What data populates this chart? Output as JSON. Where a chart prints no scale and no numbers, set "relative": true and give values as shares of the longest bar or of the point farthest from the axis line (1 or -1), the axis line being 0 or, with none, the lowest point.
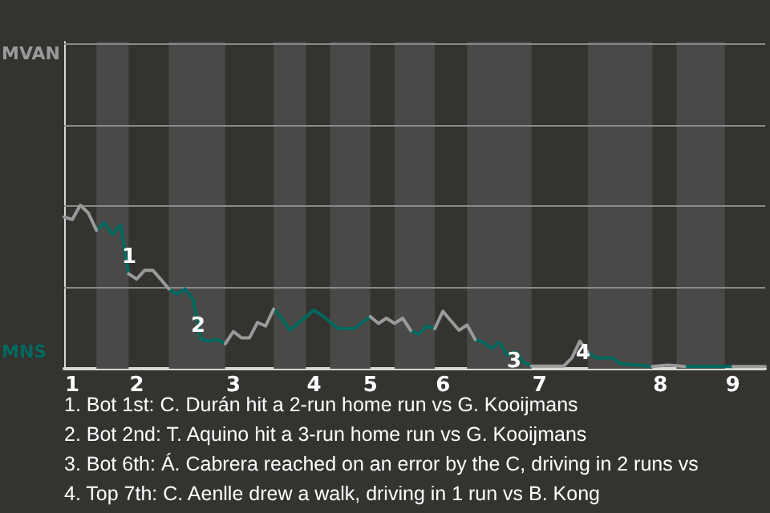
{
  "chart_data": {
    "type": "line",
    "relative": true,
    "categories": [
      null,
      "1",
      null,
      null,
      null,
      null,
      null,
      null,
      null,
      "2",
      null,
      null,
      null,
      null,
      null,
      null,
      null,
      null,
      null,
      null,
      null,
      "3",
      null,
      null,
      null,
      null,
      null,
      null,
      null,
      null,
      null,
      "4",
      null,
      null,
      null,
      null,
      null,
      null,
      "5",
      null,
      null,
      null,
      null,
      null,
      null,
      null,
      null,
      "6",
      null,
      null,
      null,
      null,
      null,
      null,
      null,
      null,
      null,
      null,
      null,
      "7",
      null,
      null,
      null,
      null,
      null,
      null,
      null,
      null,
      null,
      null,
      null,
      null,
      null,
      null,
      "8",
      null,
      null,
      null,
      null,
      null,
      null,
      null,
      null,
      "9",
      null,
      null,
      null,
      null
    ],
    "series": [
      {
        "color": "#9a9a9a",
        "values": [
          0.928,
          0.912,
          1,
          0.952,
          0.847,
          null,
          null,
          null,
          0.58,
          0.548,
          0.602,
          0.602,
          0.546,
          0.488,
          null,
          null,
          null,
          null,
          null,
          null,
          0.153,
          0.227,
          0.189,
          0.189,
          0.283,
          0.261,
          0.365,
          null,
          null,
          null,
          null,
          null,
          null,
          null,
          null,
          null,
          null,
          null,
          0.319,
          0.277,
          0.309,
          0.277,
          0.309,
          0.235,
          null,
          null,
          0.245,
          0.351,
          0.293,
          0.235,
          0.267,
          0.179,
          null,
          null,
          null,
          null,
          null,
          null,
          0.016,
          0.016,
          0.016,
          0.016,
          0.016,
          0.066,
          0.169,
          0.098,
          null,
          null,
          null,
          null,
          null,
          null,
          null,
          0.014,
          0.018,
          0.022,
          0.018,
          0.014,
          null,
          null,
          null,
          null,
          null,
          0.014,
          0.014,
          0.014,
          0.014,
          0.014
        ]
      },
      {
        "color": "#00695f",
        "values": [
          null,
          null,
          null,
          null,
          0.847,
          0.894,
          0.821,
          0.878,
          0.58,
          null,
          null,
          null,
          null,
          0.488,
          0.456,
          0.488,
          0.422,
          0.179,
          0.169,
          0.179,
          0.153,
          null,
          null,
          null,
          null,
          null,
          0.365,
          0.309,
          0.235,
          0.277,
          0.317,
          0.359,
          0.325,
          0.287,
          0.245,
          0.245,
          0.245,
          0.283,
          0.319,
          null,
          null,
          null,
          null,
          0.235,
          0.211,
          0.261,
          0.245,
          null,
          null,
          null,
          null,
          0.179,
          0.163,
          0.124,
          0.163,
          0.082,
          0.104,
          0.04,
          0.016,
          null,
          null,
          null,
          null,
          null,
          null,
          0.098,
          0.066,
          0.066,
          0.066,
          0.032,
          0.026,
          0.022,
          0.018,
          0.014,
          null,
          null,
          null,
          0.014,
          0.014,
          0.014,
          0.014,
          0.014,
          0.014,
          0.014,
          null,
          null,
          null,
          null
        ]
      }
    ],
    "ref_lines": [
      {
        "axis": "y",
        "value": 0.498,
        "color": "#8a8a8a"
      },
      {
        "axis": "y",
        "value": 0.996,
        "color": "#8a8a8a"
      },
      {
        "axis": "y",
        "value": 1.494,
        "color": "#8a8a8a"
      },
      {
        "axis": "y",
        "value": 1.992,
        "color": "#8a8a8a"
      }
    ],
    "marker": "none",
    "annotations": [
      "MVAN",
      "MNS",
      "1",
      "2",
      "3",
      "4",
      "1. Bot 1st: C. Durán hit a 2-run home run vs G. Kooijmans",
      "2. Bot 2nd: T. Aquino hit a 3-run home run vs G. Kooijmans",
      "3. Bot 6th: Á. Cabrera reached on an error by the C, driving in 2 runs vs",
      "4. Top 7th: C. Aenlle drew a walk, driving in 1 run vs B. Kong"
    ]
  }
}
